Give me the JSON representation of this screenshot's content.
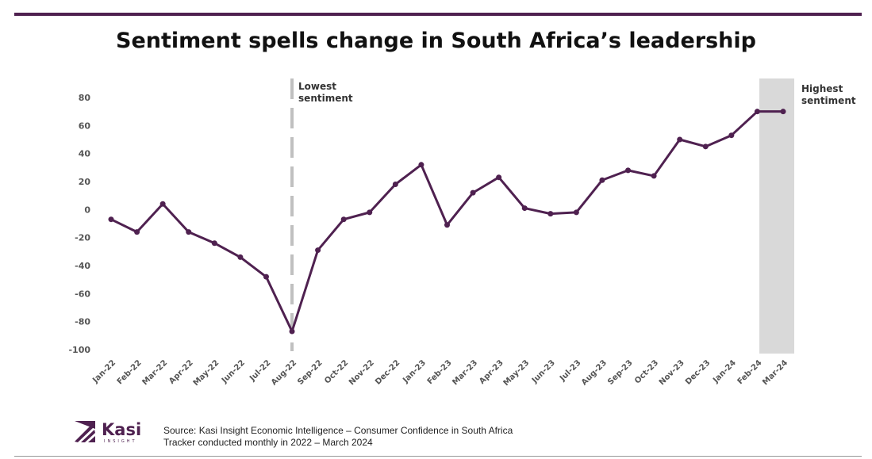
{
  "title": "Sentiment spells change in South Africa’s leadership",
  "chart_data": {
    "type": "line",
    "title": "Sentiment spells change in South Africa’s leadership",
    "categories": [
      "Jan-22",
      "Feb-22",
      "Mar-22",
      "Apr-22",
      "May-22",
      "Jun-22",
      "Jul-22",
      "Aug-22",
      "Sep-22",
      "Oct-22",
      "Nov-22",
      "Dec-22",
      "Jan-23",
      "Feb-23",
      "Mar-23",
      "Apr-23",
      "May-23",
      "Jun-23",
      "Jul-23",
      "Aug-23",
      "Sep-23",
      "Oct-23",
      "Nov-23",
      "Dec-23",
      "Jan-24",
      "Feb-24",
      "Mar-24"
    ],
    "values": [
      -7,
      -16,
      4,
      -16,
      -24,
      -34,
      -48,
      -87,
      -29,
      -7,
      -2,
      18,
      32,
      -11,
      12,
      23,
      1,
      -3,
      -2,
      21,
      28,
      24,
      50,
      45,
      53,
      70,
      70
    ],
    "yticks": [
      80,
      60,
      40,
      20,
      0,
      -20,
      -40,
      -60,
      -80,
      -100
    ],
    "ylim": [
      -100,
      80
    ],
    "grid": false,
    "line_color": "#4f2150",
    "annotations": [
      {
        "label_line1": "Lowest",
        "label_line2": "sentiment",
        "at": "Aug-22",
        "style": "dashed-line"
      },
      {
        "label_line1": "Highest",
        "label_line2": "sentiment",
        "at": "Mar-24",
        "style": "shaded-band"
      }
    ]
  },
  "source": {
    "line1": "Source: Kasi Insight Economic Intelligence – Consumer Confidence in South Africa",
    "line2": "Tracker conducted monthly in 2022 – March 2024"
  },
  "logo": {
    "name": "Kasi",
    "sub": "INSIGHT",
    "color": "#4f2150"
  }
}
